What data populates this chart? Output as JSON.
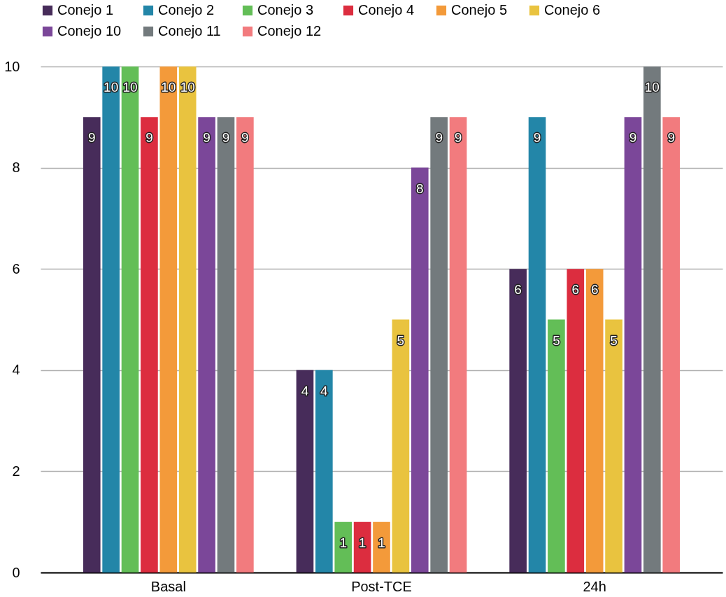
{
  "chart_data": {
    "type": "bar",
    "categories": [
      "Basal",
      "Post-TCE",
      "24h"
    ],
    "series": [
      {
        "name": "Conejo 1",
        "color": "#472c5a",
        "values": [
          9,
          4,
          6
        ]
      },
      {
        "name": "Conejo 2",
        "color": "#2386a8",
        "values": [
          10,
          4,
          9
        ]
      },
      {
        "name": "Conejo 3",
        "color": "#63be57",
        "values": [
          10,
          1,
          5
        ]
      },
      {
        "name": "Conejo 4",
        "color": "#dc2d3f",
        "values": [
          9,
          1,
          6
        ]
      },
      {
        "name": "Conejo 5",
        "color": "#f39a3a",
        "values": [
          10,
          1,
          6
        ]
      },
      {
        "name": "Conejo 6",
        "color": "#e9c33f",
        "values": [
          10,
          5,
          5
        ]
      },
      {
        "name": "Conejo 10",
        "color": "#7b4799",
        "values": [
          9,
          8,
          9
        ]
      },
      {
        "name": "Conejo 11",
        "color": "#737a7d",
        "values": [
          9,
          9,
          10
        ]
      },
      {
        "name": "Conejo 12",
        "color": "#f27b7e",
        "values": [
          9,
          9,
          9
        ]
      }
    ],
    "ylim": [
      0,
      10
    ],
    "yticks": [
      0,
      2,
      4,
      6,
      8,
      10
    ],
    "grid": "y",
    "legend": "top left",
    "data_labels": true
  }
}
